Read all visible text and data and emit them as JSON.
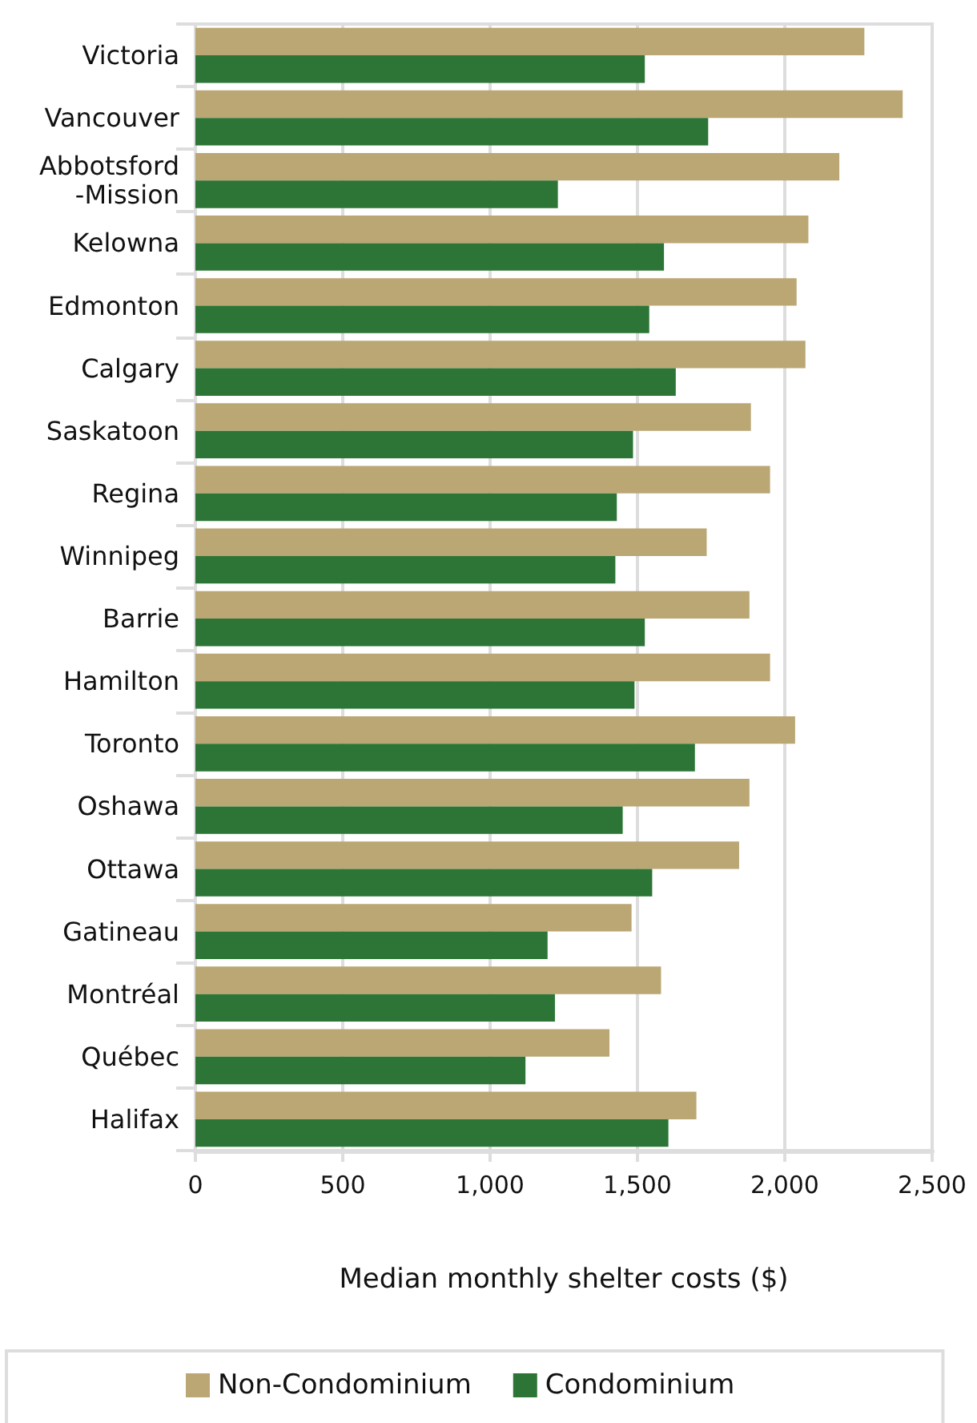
{
  "chart_data": {
    "type": "bar",
    "orientation": "horizontal",
    "xlabel": "Median monthly shelter costs ($)",
    "categories": [
      "Victoria",
      "Vancouver",
      "Abbotsford-Mission",
      "Kelowna",
      "Edmonton",
      "Calgary",
      "Saskatoon",
      "Regina",
      "Winnipeg",
      "Barrie",
      "Hamilton",
      "Toronto",
      "Oshawa",
      "Ottawa",
      "Gatineau",
      "Montréal",
      "Québec",
      "Halifax"
    ],
    "series": [
      {
        "name": "Non-Condominium",
        "color": "#bba774",
        "values": [
          2270,
          2400,
          2185,
          2080,
          2040,
          2070,
          1885,
          1950,
          1735,
          1880,
          1950,
          2035,
          1880,
          1845,
          1480,
          1580,
          1405,
          1700
        ]
      },
      {
        "name": "Condominium",
        "color": "#2d7536",
        "values": [
          1525,
          1740,
          1230,
          1590,
          1540,
          1630,
          1485,
          1430,
          1425,
          1525,
          1490,
          1695,
          1450,
          1550,
          1195,
          1220,
          1120,
          1605
        ]
      }
    ],
    "xlim": [
      0,
      2500
    ],
    "xticks": [
      0,
      500,
      {
        "value": 1000,
        "label": "1,000"
      },
      {
        "value": 1500,
        "label": "1,500"
      },
      {
        "value": 2000,
        "label": "2,000"
      },
      {
        "value": 2500,
        "label": "2,500"
      }
    ],
    "grid": "x",
    "legend": "bottom"
  }
}
